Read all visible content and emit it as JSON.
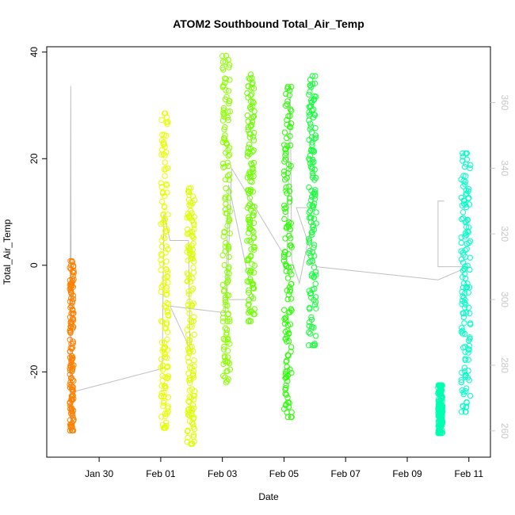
{
  "chart_data": {
    "type": "scatter",
    "title": "ATOM2 Southbound Total_Air_Temp",
    "xlabel": "Date",
    "ylabel": "Total_Air_Temp",
    "x_ticks": [
      "Jan 30",
      "Feb 01",
      "Feb 03",
      "Feb 05",
      "Feb 07",
      "Feb 09",
      "Feb 11"
    ],
    "x_tick_days": [
      30,
      32,
      34,
      36,
      38,
      40,
      42
    ],
    "xlim_days": [
      28.3,
      42.7
    ],
    "ylim": [
      -36.0,
      41.0
    ],
    "y_ticks": [
      -20,
      0,
      20,
      40
    ],
    "y2_ticks": [
      260,
      280,
      300,
      320,
      340,
      360
    ],
    "y2lim": [
      252,
      377
    ],
    "marker": "open-circle",
    "point_series": [
      {
        "color": "#ff8000",
        "day_start": 29.05,
        "day_end": 29.18,
        "values": [
          -31,
          -22,
          -10,
          0.8
        ]
      },
      {
        "color": "#e6ff00",
        "day_start": 32.0,
        "day_end": 32.25,
        "values": [
          -30.5,
          -15,
          5,
          28.5
        ]
      },
      {
        "color": "#ddff00",
        "day_start": 32.85,
        "day_end": 33.1,
        "values": [
          -33.5,
          -20,
          0,
          14.5
        ]
      },
      {
        "color": "#8cff00",
        "day_start": 34.0,
        "day_end": 34.25,
        "values": [
          -22,
          -5,
          20,
          39.3
        ]
      },
      {
        "color": "#6eff00",
        "day_start": 34.8,
        "day_end": 35.05,
        "values": [
          -10.5,
          5,
          20,
          35.8
        ]
      },
      {
        "color": "#28ff00",
        "day_start": 36.0,
        "day_end": 36.25,
        "values": [
          -28.5,
          -10,
          10,
          33.5
        ]
      },
      {
        "color": "#17ff3c",
        "day_start": 36.8,
        "day_end": 37.05,
        "values": [
          -15,
          5,
          20,
          35.5
        ]
      },
      {
        "color": "#00ffb0",
        "day_start": 41.0,
        "day_end": 41.15,
        "values": [
          -31.5,
          -27,
          -22.5
        ]
      },
      {
        "color": "#00ffc5",
        "day_start": 41.75,
        "day_end": 42.05,
        "values": [
          -27.5,
          -10,
          5,
          21
        ]
      }
    ],
    "altitude_line": {
      "color": "#c0c0c0",
      "axis": "right",
      "points": [
        [
          29.05,
          264
        ],
        [
          29.08,
          365
        ],
        [
          29.1,
          264
        ],
        [
          29.2,
          272
        ],
        [
          32.05,
          279
        ],
        [
          32.1,
          326
        ],
        [
          32.3,
          318
        ],
        [
          32.9,
          318
        ],
        [
          32.95,
          285
        ],
        [
          32.3,
          298
        ],
        [
          34.1,
          296
        ],
        [
          34.2,
          335
        ],
        [
          35.0,
          300
        ],
        [
          34.15,
          300
        ],
        [
          34.3,
          340
        ],
        [
          36.1,
          312
        ],
        [
          36.2,
          365
        ],
        [
          36.25,
          312
        ],
        [
          36.5,
          305
        ],
        [
          37.0,
          328
        ],
        [
          36.4,
          328
        ],
        [
          37.05,
          310
        ],
        [
          41.0,
          306
        ],
        [
          42.0,
          310
        ],
        [
          41.0,
          310
        ],
        [
          41.0,
          330
        ],
        [
          41.2,
          330
        ]
      ]
    }
  }
}
